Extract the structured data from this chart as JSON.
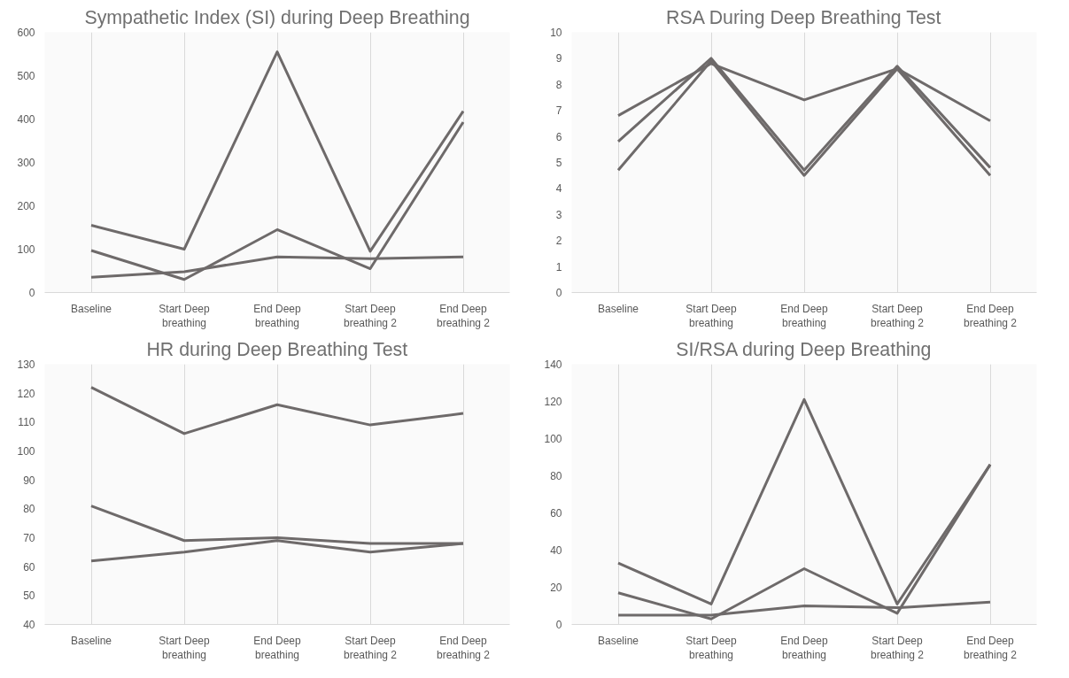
{
  "chart_data": [
    {
      "type": "line",
      "title": "Sympathetic Index (SI) during Deep Breathing",
      "categories": [
        "Baseline",
        "Start Deep breathing",
        "End Deep breathing",
        "Start Deep breathing 2",
        "End Deep breathing 2"
      ],
      "ylim": [
        0,
        600
      ],
      "yticks": [
        0,
        100,
        200,
        300,
        400,
        500,
        600
      ],
      "grid": "x",
      "series": [
        {
          "color": "#6e6a6a",
          "values": [
            155,
            100,
            555,
            95,
            418
          ]
        },
        {
          "color": "#6e6a6a",
          "values": [
            97,
            30,
            145,
            55,
            393
          ]
        },
        {
          "color": "#6e6a6a",
          "values": [
            35,
            48,
            82,
            78,
            82
          ]
        }
      ]
    },
    {
      "type": "line",
      "title": "RSA During Deep Breathing Test",
      "categories": [
        "Baseline",
        "Start Deep breathing",
        "End Deep breathing",
        "Start Deep breathing 2",
        "End Deep breathing 2"
      ],
      "ylim": [
        0,
        10
      ],
      "yticks": [
        0,
        1,
        2,
        3,
        4,
        5,
        6,
        7,
        8,
        9,
        10
      ],
      "grid": "x",
      "series": [
        {
          "color": "#6e6a6a",
          "values": [
            6.8,
            8.8,
            7.4,
            8.6,
            6.6
          ]
        },
        {
          "color": "#6e6a6a",
          "values": [
            5.8,
            9.0,
            4.7,
            8.7,
            4.8
          ]
        },
        {
          "color": "#6e6a6a",
          "values": [
            4.7,
            8.9,
            4.5,
            8.6,
            4.5
          ]
        }
      ]
    },
    {
      "type": "line",
      "title": "HR during Deep Breathing Test",
      "categories": [
        "Baseline",
        "Start Deep breathing",
        "End Deep breathing",
        "Start Deep breathing 2",
        "End Deep breathing 2"
      ],
      "ylim": [
        40,
        130
      ],
      "yticks": [
        40,
        50,
        60,
        70,
        80,
        90,
        100,
        110,
        120,
        130
      ],
      "grid": "x",
      "series": [
        {
          "color": "#6e6a6a",
          "values": [
            122,
            106,
            116,
            109,
            113
          ]
        },
        {
          "color": "#6e6a6a",
          "values": [
            81,
            69,
            70,
            68,
            68
          ]
        },
        {
          "color": "#6e6a6a",
          "values": [
            62,
            65,
            69,
            65,
            68
          ]
        }
      ]
    },
    {
      "type": "line",
      "title": "SI/RSA during Deep Breathing",
      "categories": [
        "Baseline",
        "Start Deep breathing",
        "End Deep breathing",
        "Start Deep breathing 2",
        "End Deep breathing 2"
      ],
      "ylim": [
        0,
        140
      ],
      "yticks": [
        0,
        20,
        40,
        60,
        80,
        100,
        120,
        140
      ],
      "grid": "x",
      "series": [
        {
          "color": "#6e6a6a",
          "values": [
            33,
            11,
            121,
            11,
            86
          ]
        },
        {
          "color": "#6e6a6a",
          "values": [
            17,
            3,
            30,
            6,
            86
          ]
        },
        {
          "color": "#6e6a6a",
          "values": [
            5,
            5,
            10,
            9,
            12
          ]
        }
      ]
    }
  ]
}
